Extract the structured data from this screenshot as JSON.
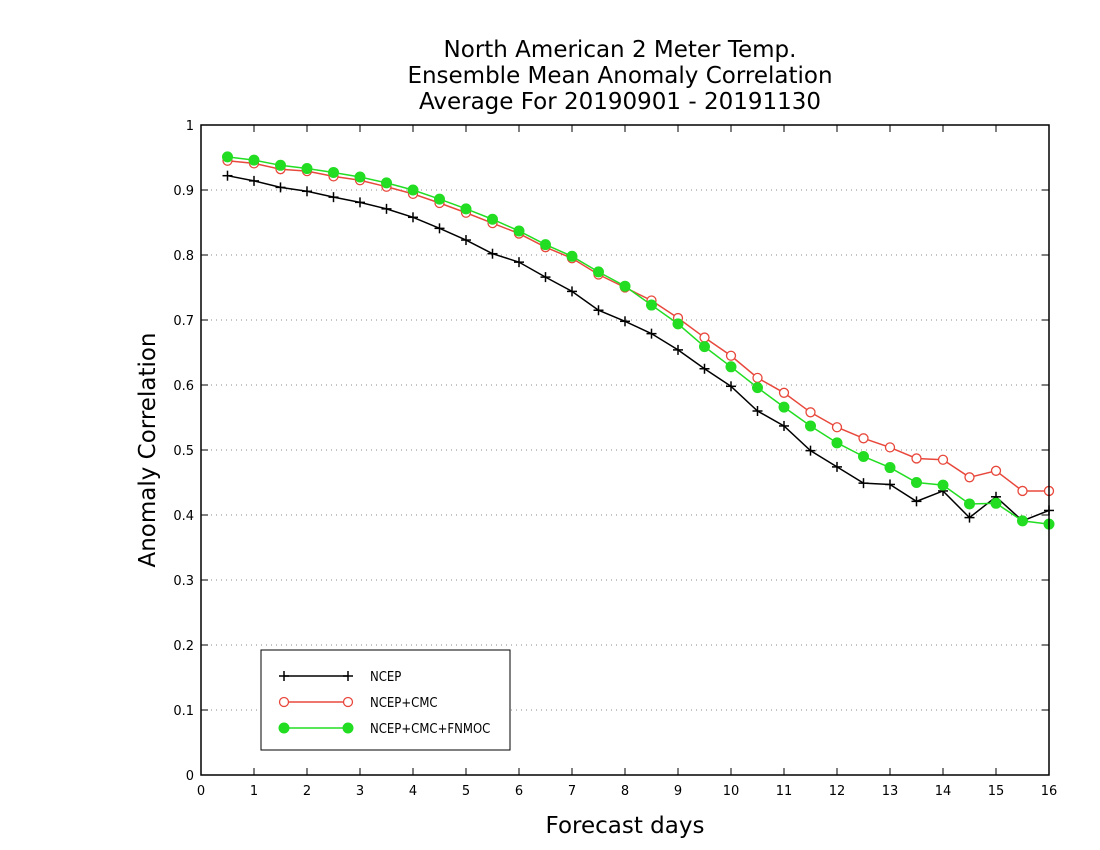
{
  "chart_data": {
    "type": "line",
    "title_lines": [
      "North American 2 Meter Temp.",
      "Ensemble Mean Anomaly Correlation",
      "Average For 20190901 - 20191130"
    ],
    "xlabel": "Forecast days",
    "ylabel": "Anomaly Correlation",
    "xlim": [
      0,
      16
    ],
    "ylim": [
      0,
      1
    ],
    "x_ticks": [
      0,
      1,
      2,
      3,
      4,
      5,
      6,
      7,
      8,
      9,
      10,
      11,
      12,
      13,
      14,
      15,
      16
    ],
    "y_ticks": [
      0,
      0.1,
      0.2,
      0.3,
      0.4,
      0.5,
      0.6,
      0.7,
      0.8,
      0.9,
      1
    ],
    "grid": "horizontal dotted",
    "legend_position": "bottom-left",
    "x": [
      0.5,
      1,
      1.5,
      2,
      2.5,
      3,
      3.5,
      4,
      4.5,
      5,
      5.5,
      6,
      6.5,
      7,
      7.5,
      8,
      8.5,
      9,
      9.5,
      10,
      10.5,
      11,
      11.5,
      12,
      12.5,
      13,
      13.5,
      14,
      14.5,
      15,
      15.5,
      16
    ],
    "series": [
      {
        "name": "NCEP",
        "color": "#000000",
        "marker": "plus",
        "values": [
          0.922,
          0.914,
          0.904,
          0.898,
          0.889,
          0.881,
          0.871,
          0.858,
          0.841,
          0.823,
          0.802,
          0.789,
          0.766,
          0.744,
          0.715,
          0.698,
          0.679,
          0.654,
          0.625,
          0.598,
          0.56,
          0.537,
          0.499,
          0.474,
          0.449,
          0.447,
          0.421,
          0.437,
          0.396,
          0.428,
          0.391,
          0.407
        ]
      },
      {
        "name": "NCEP+CMC",
        "color": "#e8483c",
        "marker": "open-circle",
        "values": [
          0.945,
          0.941,
          0.932,
          0.929,
          0.921,
          0.915,
          0.905,
          0.894,
          0.88,
          0.865,
          0.849,
          0.833,
          0.812,
          0.795,
          0.77,
          0.75,
          0.73,
          0.703,
          0.673,
          0.645,
          0.611,
          0.588,
          0.558,
          0.535,
          0.518,
          0.504,
          0.487,
          0.485,
          0.458,
          0.468,
          0.437,
          0.437
        ]
      },
      {
        "name": "NCEP+CMC+FNMOC",
        "color": "#22dd22",
        "marker": "filled-circle",
        "values": [
          0.951,
          0.946,
          0.938,
          0.933,
          0.927,
          0.92,
          0.911,
          0.9,
          0.886,
          0.871,
          0.855,
          0.837,
          0.816,
          0.798,
          0.774,
          0.752,
          0.723,
          0.694,
          0.659,
          0.628,
          0.596,
          0.566,
          0.537,
          0.511,
          0.49,
          0.473,
          0.45,
          0.446,
          0.417,
          0.418,
          0.391,
          0.386
        ]
      }
    ]
  }
}
